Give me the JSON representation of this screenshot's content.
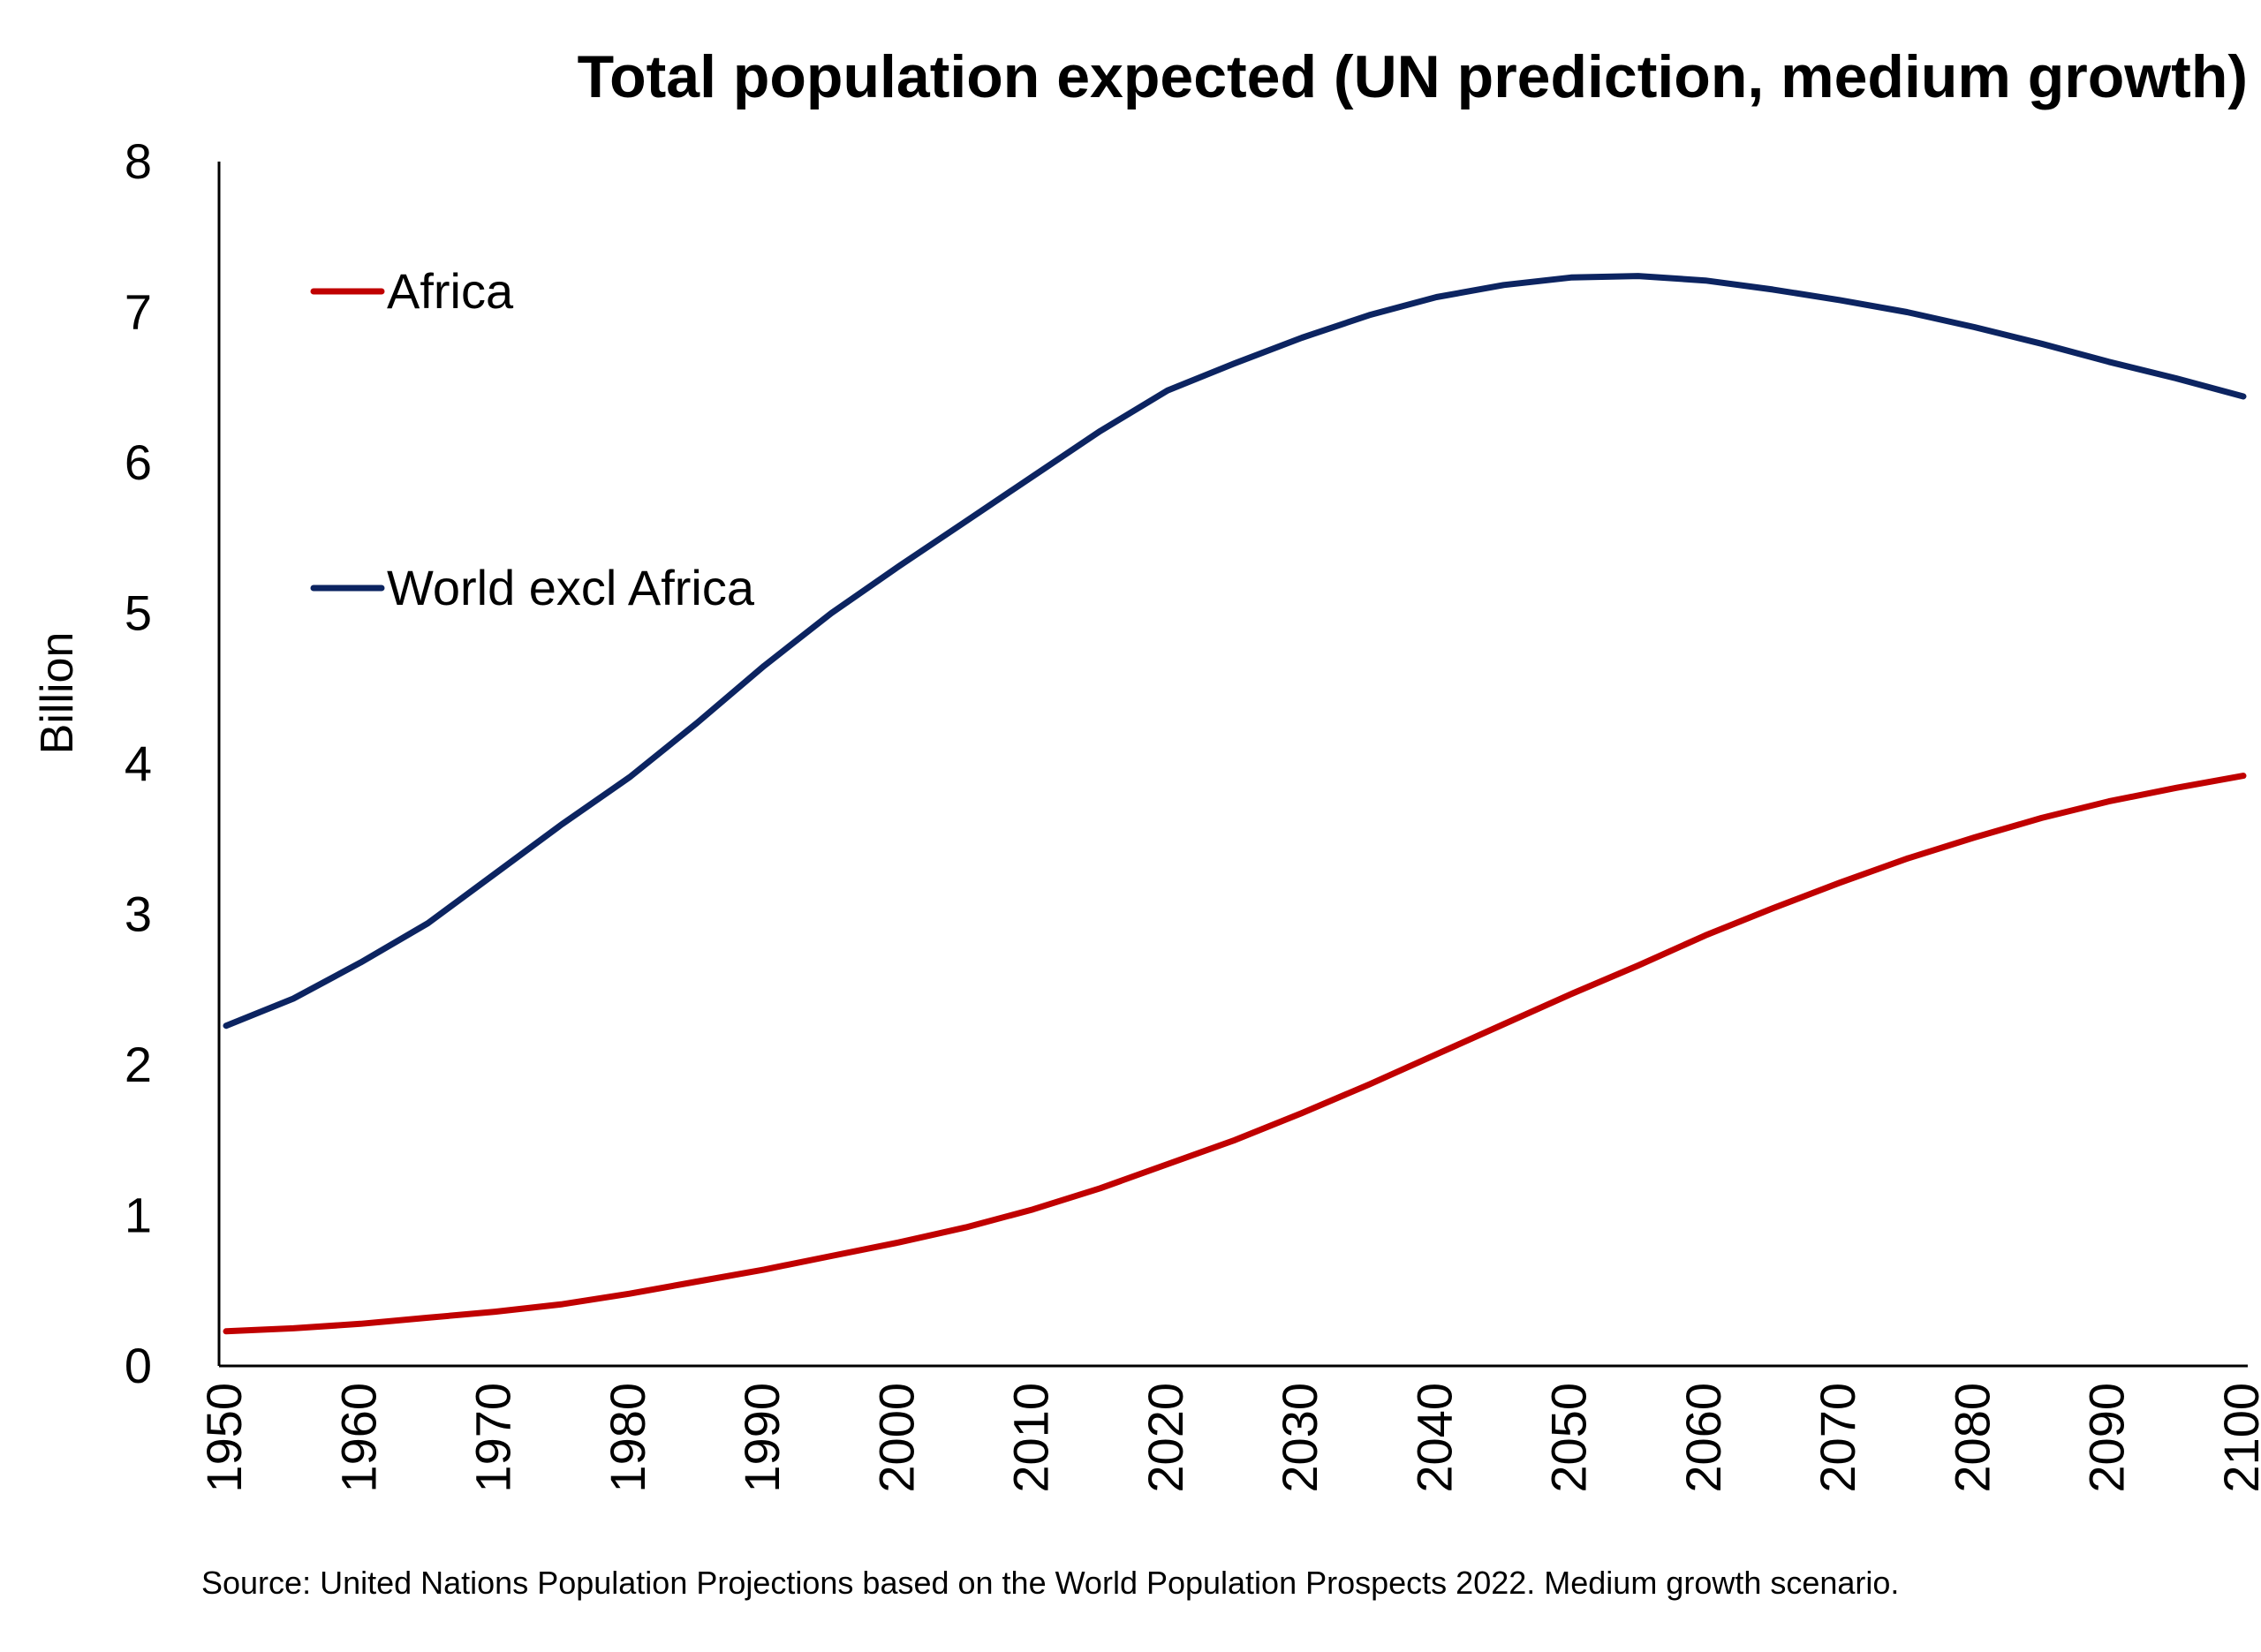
{
  "chart_data": {
    "type": "line",
    "title": "Total population expected (UN prediction, medium growth)",
    "ylabel": "Billion",
    "xlabel": "",
    "xlim": [
      1950,
      2100
    ],
    "ylim": [
      0,
      8
    ],
    "y_ticks": [
      "0",
      "1",
      "2",
      "3",
      "4",
      "5",
      "6",
      "7",
      "8"
    ],
    "x_ticks": [
      "1950",
      "1960",
      "1970",
      "1980",
      "1990",
      "2000",
      "2010",
      "2020",
      "2030",
      "2040",
      "2050",
      "2060",
      "2070",
      "2080",
      "2090",
      "2100"
    ],
    "grid": false,
    "legend_placement": "top-left",
    "x": [
      1950,
      1955,
      1960,
      1965,
      1970,
      1975,
      1980,
      1985,
      1990,
      1995,
      2000,
      2005,
      2010,
      2015,
      2020,
      2025,
      2030,
      2035,
      2040,
      2045,
      2050,
      2055,
      2060,
      2065,
      2070,
      2075,
      2080,
      2085,
      2090,
      2095,
      2100
    ],
    "series": [
      {
        "name": "Africa",
        "color": "#c00000",
        "values": [
          0.23,
          0.25,
          0.28,
          0.32,
          0.36,
          0.41,
          0.48,
          0.56,
          0.64,
          0.73,
          0.82,
          0.92,
          1.04,
          1.18,
          1.34,
          1.5,
          1.68,
          1.87,
          2.07,
          2.27,
          2.47,
          2.66,
          2.86,
          3.04,
          3.21,
          3.37,
          3.51,
          3.64,
          3.75,
          3.84,
          3.92
        ]
      },
      {
        "name": "World excl Africa",
        "color": "#0c2461",
        "values": [
          2.26,
          2.44,
          2.68,
          2.94,
          3.27,
          3.6,
          3.91,
          4.27,
          4.65,
          5.0,
          5.31,
          5.61,
          5.91,
          6.21,
          6.48,
          6.66,
          6.83,
          6.98,
          7.1,
          7.18,
          7.23,
          7.24,
          7.21,
          7.15,
          7.08,
          7.0,
          6.9,
          6.79,
          6.67,
          6.56,
          6.44
        ]
      }
    ],
    "source": "Source: United Nations Population Projections based on the World Population Prospects 2022. Medium growth scenario."
  }
}
